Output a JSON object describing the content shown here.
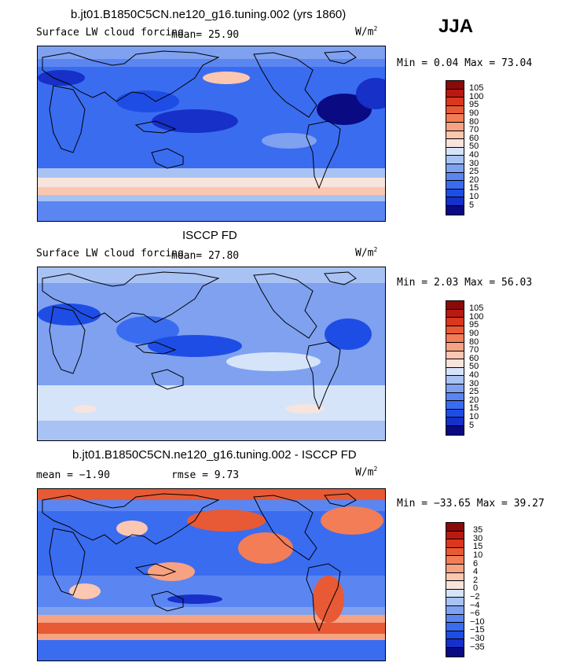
{
  "header": {
    "season": "JJA"
  },
  "colors": {
    "ocean_levels": [
      "#0a0a82",
      "#1630c8",
      "#1e4de6",
      "#3a6cf0",
      "#5b86f2",
      "#7fa1f0",
      "#a9c2f4",
      "#d6e4fa",
      "#f7e4dc",
      "#fbc7b1",
      "#f7a283",
      "#f27d57",
      "#e75a35",
      "#d9381e",
      "#b81a12",
      "#8a0a0a"
    ]
  },
  "panels": [
    {
      "title": "b.jt01.B1850C5CN.ne120_g16.tuning.002 (yrs 1860)",
      "left_label": "Surface LW cloud forcing",
      "mean_text": "mean=   25.90",
      "rmse_text": "",
      "units": "W/m",
      "units_sup": "2",
      "minmax": "Min =    0.04  Max =   73.04",
      "colorbar": [
        "105",
        "100",
        "95",
        "90",
        "80",
        "70",
        "60",
        "50",
        "40",
        "30",
        "25",
        "20",
        "15",
        "10",
        "5"
      ]
    },
    {
      "title": "ISCCP FD",
      "left_label": "Surface LW cloud forcing",
      "mean_text": "mean=   27.80",
      "rmse_text": "",
      "units": "W/m",
      "units_sup": "2",
      "minmax": "Min =    2.03  Max =   56.03",
      "colorbar": [
        "105",
        "100",
        "95",
        "90",
        "80",
        "70",
        "60",
        "50",
        "40",
        "30",
        "25",
        "20",
        "15",
        "10",
        "5"
      ]
    },
    {
      "title": "b.jt01.B1850C5CN.ne120_g16.tuning.002 - ISCCP FD",
      "left_label": "mean =   −1.90",
      "mean_text": "",
      "rmse_text": "rmse =    9.73",
      "units": "W/m",
      "units_sup": "2",
      "minmax": "Min = −33.65  Max =   39.27",
      "colorbar": [
        "35",
        "30",
        "15",
        "10",
        "6",
        "4",
        "2",
        "0",
        "−2",
        "−4",
        "−6",
        "−10",
        "−15",
        "−30",
        "−35"
      ]
    }
  ],
  "chart_data": [
    {
      "type": "heatmap",
      "title": "b.jt01.B1850C5CN.ne120_g16.tuning.002 (yrs 1860)",
      "subtitle": "Surface LW cloud forcing",
      "mean": 25.9,
      "min": 0.04,
      "max": 73.04,
      "units": "W/m2",
      "levels": [
        5,
        10,
        15,
        20,
        25,
        30,
        40,
        50,
        60,
        70,
        80,
        90,
        95,
        100,
        105
      ]
    },
    {
      "type": "heatmap",
      "title": "ISCCP FD",
      "subtitle": "Surface LW cloud forcing",
      "mean": 27.8,
      "min": 2.03,
      "max": 56.03,
      "units": "W/m2",
      "levels": [
        5,
        10,
        15,
        20,
        25,
        30,
        40,
        50,
        60,
        70,
        80,
        90,
        95,
        100,
        105
      ]
    },
    {
      "type": "heatmap",
      "title": "b.jt01.B1850C5CN.ne120_g16.tuning.002 - ISCCP FD",
      "mean": -1.9,
      "rmse": 9.73,
      "min": -33.65,
      "max": 39.27,
      "units": "W/m2",
      "levels": [
        -35,
        -30,
        -15,
        -10,
        -6,
        -4,
        -2,
        0,
        2,
        4,
        6,
        10,
        15,
        30,
        35
      ]
    }
  ]
}
